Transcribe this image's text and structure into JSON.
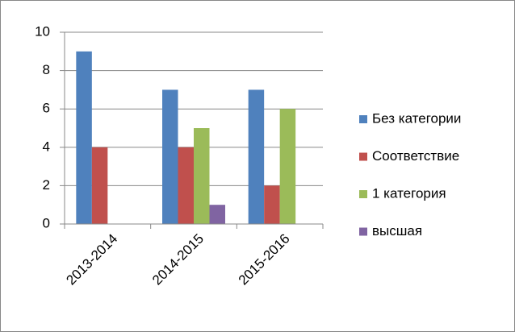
{
  "chart_data": {
    "type": "bar",
    "categories": [
      "2013-2014",
      "2014-2015",
      "2015-2016"
    ],
    "series": [
      {
        "name": "Без категории",
        "color": "#4f81bd",
        "values": [
          9,
          7,
          7
        ]
      },
      {
        "name": "Соответствие",
        "color": "#c0504d",
        "values": [
          4,
          4,
          2
        ]
      },
      {
        "name": "1 категория",
        "color": "#9bbb59",
        "values": [
          0,
          5,
          6
        ]
      },
      {
        "name": "высшая",
        "color": "#8064a2",
        "values": [
          0,
          1,
          0
        ]
      }
    ],
    "ylim": [
      0,
      10
    ],
    "yticks": [
      0,
      2,
      4,
      6,
      8,
      10
    ],
    "grid": true,
    "legend": "right"
  }
}
